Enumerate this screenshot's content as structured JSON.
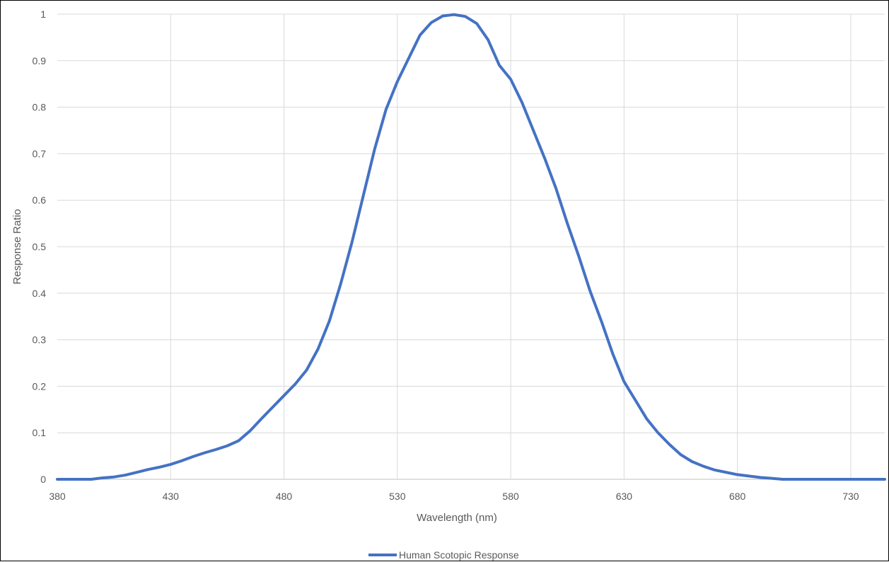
{
  "chart_data": {
    "type": "line",
    "title": "",
    "xlabel": "Wavelength (nm)",
    "ylabel": "Response Ratio",
    "xlim": [
      380,
      745
    ],
    "ylim": [
      0,
      1
    ],
    "x_ticks": [
      "380",
      "430",
      "480",
      "530",
      "580",
      "630",
      "680",
      "730"
    ],
    "y_ticks": [
      "0",
      "0.1",
      "0.2",
      "0.3",
      "0.4",
      "0.5",
      "0.6",
      "0.7",
      "0.8",
      "0.9",
      "1"
    ],
    "grid": true,
    "legend_position": "bottom",
    "series": [
      {
        "name": "Human Scotopic Response",
        "color": "#4472C4",
        "x": [
          380,
          395,
          400,
          405,
          410,
          415,
          420,
          425,
          430,
          435,
          440,
          445,
          450,
          455,
          460,
          465,
          470,
          475,
          480,
          485,
          490,
          495,
          500,
          505,
          510,
          515,
          520,
          525,
          530,
          535,
          540,
          545,
          550,
          555,
          560,
          565,
          570,
          575,
          580,
          585,
          590,
          595,
          600,
          605,
          610,
          615,
          620,
          625,
          630,
          635,
          640,
          645,
          650,
          655,
          660,
          665,
          670,
          675,
          680,
          685,
          690,
          695,
          700,
          705,
          710,
          720,
          730,
          745
        ],
        "y": [
          0,
          0,
          0.003,
          0.005,
          0.009,
          0.015,
          0.021,
          0.026,
          0.032,
          0.04,
          0.049,
          0.057,
          0.064,
          0.072,
          0.083,
          0.104,
          0.13,
          0.155,
          0.18,
          0.205,
          0.235,
          0.28,
          0.34,
          0.42,
          0.51,
          0.61,
          0.71,
          0.795,
          0.855,
          0.905,
          0.955,
          0.982,
          0.996,
          0.999,
          0.995,
          0.98,
          0.945,
          0.89,
          0.86,
          0.81,
          0.75,
          0.69,
          0.625,
          0.55,
          0.48,
          0.405,
          0.34,
          0.27,
          0.21,
          0.17,
          0.13,
          0.1,
          0.075,
          0.053,
          0.038,
          0.028,
          0.02,
          0.015,
          0.01,
          0.007,
          0.004,
          0.002,
          0,
          0,
          0,
          0,
          0,
          0
        ]
      }
    ]
  }
}
